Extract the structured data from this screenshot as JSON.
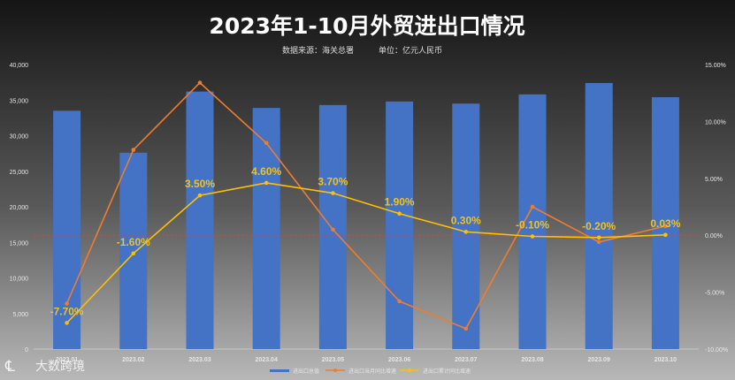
{
  "title": "2023年1-10月外贸进出口情况",
  "subtitle": {
    "source": "数据来源：海关总署",
    "unit": "单位：亿元人民币"
  },
  "watermark": {
    "text": "大数跨境"
  },
  "colors": {
    "bar": "#4472c4",
    "mom_line": "#ed7d31",
    "cum_line": "#ffc000",
    "label": "#f2c21b",
    "zero_line": "#c0504d"
  },
  "chart_data": {
    "type": "bar",
    "categories": [
      "2023.01",
      "2023.02",
      "2023.03",
      "2023.04",
      "2023.05",
      "2023.06",
      "2023.07",
      "2023.08",
      "2023.09",
      "2023.10"
    ],
    "series": [
      {
        "name": "进出口总值",
        "type": "bar",
        "axis": "left",
        "values": [
          33500,
          27600,
          36200,
          33900,
          34300,
          34800,
          34500,
          35800,
          37400,
          35400
        ]
      },
      {
        "name": "进出口当月同比增速",
        "type": "line",
        "axis": "right",
        "values": [
          -6.0,
          7.5,
          13.4,
          8.1,
          0.5,
          -5.8,
          -8.2,
          2.5,
          -0.6,
          0.8
        ]
      },
      {
        "name": "进出口累计同比增速",
        "type": "line",
        "axis": "right",
        "values": [
          -7.7,
          -1.6,
          3.5,
          4.6,
          3.7,
          1.9,
          0.3,
          -0.1,
          -0.2,
          0.03
        ],
        "labels": [
          "-7.70%",
          "-1.60%",
          "3.50%",
          "4.60%",
          "3.70%",
          "1.90%",
          "0.30%",
          "-0.10%",
          "-0.20%",
          "0.03%"
        ]
      }
    ],
    "ylim_left": [
      0,
      40000
    ],
    "ylim_right": [
      -10,
      15
    ],
    "yticks_left": [
      "0",
      "5,000",
      "10,000",
      "15,000",
      "20,000",
      "25,000",
      "30,000",
      "35,000",
      "40,000"
    ],
    "yticks_right": [
      "-10.00%",
      "-5.00%",
      "0.00%",
      "5.00%",
      "10.00%",
      "15.00%"
    ],
    "grid": false,
    "legend_position": "bottom"
  }
}
